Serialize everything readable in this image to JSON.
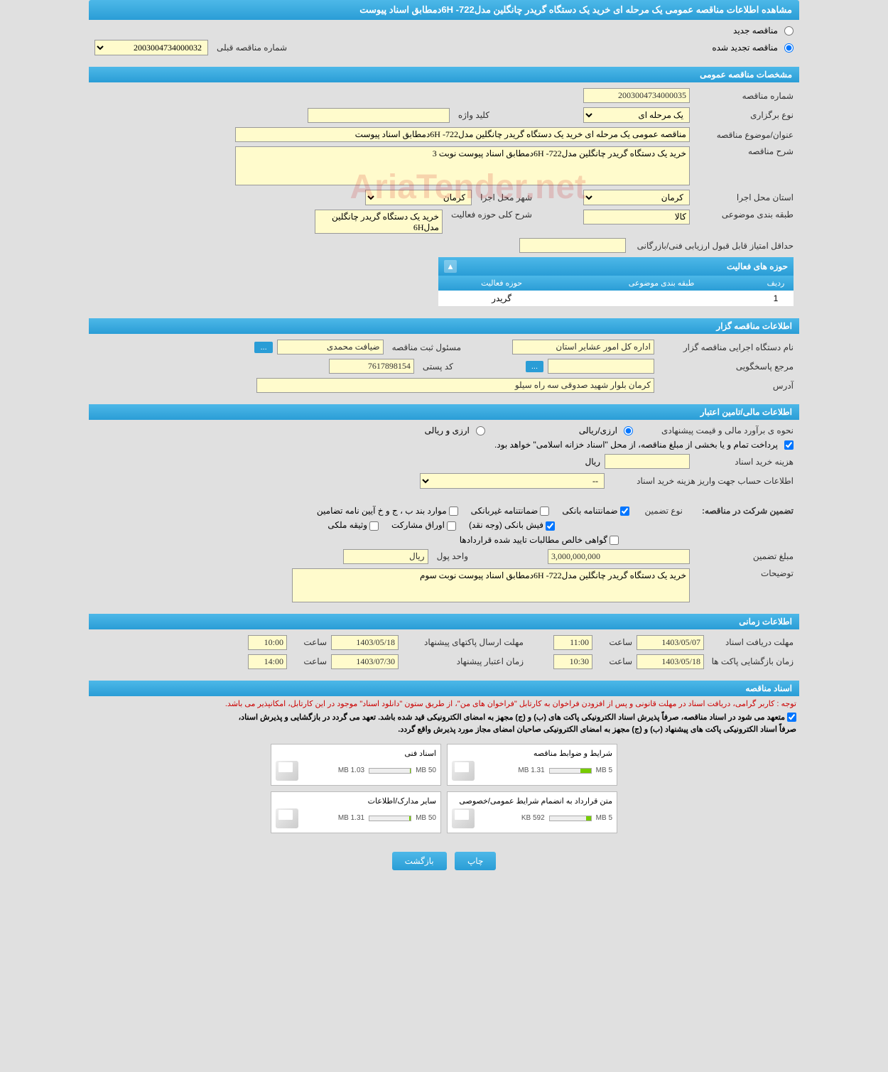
{
  "title": "مشاهده اطلاعات مناقصه عمومی یک مرحله ای خرید یک دستگاه گریدر چانگلین مدل722- 6Hدمطابق اسناد پیوست",
  "mode": {
    "new": "مناقصه جدید",
    "renewed": "مناقصه تجدید شده",
    "prev_label": "شماره مناقصه قبلی",
    "prev_value": "2003004734000032"
  },
  "sec1": {
    "title": "مشخصات مناقصه عمومی",
    "tender_no_lbl": "شماره مناقصه",
    "tender_no": "2003004734000035",
    "type_lbl": "نوع برگزاری",
    "type": "یک مرحله ای",
    "keyword_lbl": "کلید واژه",
    "keyword": "",
    "subject_lbl": "عنوان/موضوع مناقصه",
    "subject": "مناقصه عمومی یک مرحله ای خرید یک دستگاه گریدر چانگلین مدل722- 6Hدمطابق اسناد پیوست",
    "desc_lbl": "شرح مناقصه",
    "desc": "خرید یک دستگاه گریدر چانگلین مدل722- 6Hدمطابق اسناد پیوست نوبت 3",
    "province_lbl": "استان محل اجرا",
    "province": "کرمان",
    "city_lbl": "شهر محل اجرا",
    "city": "کرمان",
    "category_lbl": "طبقه بندی موضوعی",
    "category": "کالا",
    "activity_desc_lbl": "شرح کلی حوزه فعالیت",
    "activity_desc": "خرید یک دستگاه گریدر چانگلین مدل6H",
    "min_score_lbl": "حداقل امتیاز قابل قبول ارزیابی فنی/بازرگانی",
    "min_score": ""
  },
  "activity": {
    "title": "حوزه های فعالیت",
    "col_row": "ردیف",
    "col_cat": "طبقه بندی موضوعی",
    "col_field": "حوزه فعالیت",
    "rows": [
      {
        "n": "1",
        "cat": "",
        "field": "گریدر"
      }
    ]
  },
  "sec2": {
    "title": "اطلاعات مناقصه گزار",
    "org_lbl": "نام دستگاه اجرایی مناقصه گزار",
    "org": "اداره کل امور عشایر استان",
    "reg_officer_lbl": "مسئول ثبت مناقصه",
    "reg_officer": "ضیافت محمدی",
    "contact_lbl": "مرجع پاسخگویی",
    "contact": "",
    "postal_lbl": "کد پستی",
    "postal": "7617898154",
    "address_lbl": "آدرس",
    "address": "کرمان بلوار شهید صدوقی سه راه سیلو"
  },
  "sec3": {
    "title": "اطلاعات مالی/تامین اعتبار",
    "estimate_lbl": "نحوه ی برآورد مالی و قیمت پیشنهادی",
    "curr_rial": "ارزی/ریالی",
    "curr_mixed": "ارزی و ریالی",
    "payment_note": "پرداخت تمام و یا بخشی از مبلغ مناقصه، از محل \"اسناد خزانه اسلامی\" خواهد بود.",
    "doc_fee_lbl": "هزینه خرید اسناد",
    "doc_fee_unit": "ریال",
    "deposit_acct_lbl": "اطلاعات حساب جهت واریز هزینه خرید اسناد",
    "deposit_acct": "--",
    "guarantee_title": "تضمین شرکت در مناقصه:",
    "guarantee_type_lbl": "نوع تضمین",
    "g_bank": "ضمانتنامه بانکی",
    "g_nonbank": "ضمانتنامه غیربانکی",
    "g_regulation": "موارد بند ب ، ج و خ آیین نامه تضامین",
    "g_cash": "فیش بانکی (وجه نقد)",
    "g_bonds": "اوراق مشارکت",
    "g_property": "وثیقه ملکی",
    "g_receivable": "گواهی خالص مطالبات تایید شده قراردادها",
    "amount_lbl": "مبلغ تضمین",
    "amount": "3,000,000,000",
    "unit_lbl": "واحد پول",
    "unit": "ریال",
    "notes_lbl": "توضیحات",
    "notes": "خرید یک دستگاه گریدر چانگلین مدل722- 6Hدمطابق اسناد پیوست نوبت سوم"
  },
  "sec4": {
    "title": "اطلاعات زمانی",
    "receive_lbl": "مهلت دریافت اسناد",
    "receive_date": "1403/05/07",
    "receive_hour": "11:00",
    "send_lbl": "مهلت ارسال پاکتهای پیشنهاد",
    "send_date": "1403/05/18",
    "send_hour": "10:00",
    "open_lbl": "زمان بازگشایی پاکت ها",
    "open_date": "1403/05/18",
    "open_hour": "10:30",
    "valid_lbl": "زمان اعتبار پیشنهاد",
    "valid_date": "1403/07/30",
    "valid_hour": "14:00",
    "hour_lbl": "ساعت"
  },
  "sec5": {
    "title": "اسناد مناقصه",
    "notice1": "توجه : کاربر گرامی، دریافت اسناد در مهلت قانونی و پس از افزودن فراخوان به کارتابل \"فراخوان های من\"، از طریق ستون \"دانلود اسناد\" موجود در این کارتابل، امکانپذیر می باشد.",
    "notice2": "متعهد می شود در اسناد مناقصه، صرفاً پذیرش اسناد الکترونیکی پاکت های (ب) و (ج) مجهز به امضای الکترونیکی قید شده باشد. تعهد می گردد در بازگشایی و پذیرش اسناد،",
    "notice3": "صرفاً اسناد الکترونیکی پاکت های پیشنهاد (ب) و (ج) مجهز به امضای الکترونیکی صاحبان امضای مجاز مورد پذیرش واقع گردد.",
    "files": [
      {
        "title": "شرایط و ضوابط مناقصه",
        "size": "1.31 MB",
        "limit": "5 MB",
        "pct": 26
      },
      {
        "title": "اسناد فنی",
        "size": "1.03 MB",
        "limit": "50 MB",
        "pct": 2
      },
      {
        "title": "متن قرارداد به انضمام شرایط عمومی/خصوصی",
        "size": "592 KB",
        "limit": "5 MB",
        "pct": 12
      },
      {
        "title": "سایر مدارک/اطلاعات",
        "size": "1.31 MB",
        "limit": "50 MB",
        "pct": 3
      }
    ]
  },
  "btn_print": "چاپ",
  "btn_back": "بازگشت",
  "dots": "..."
}
